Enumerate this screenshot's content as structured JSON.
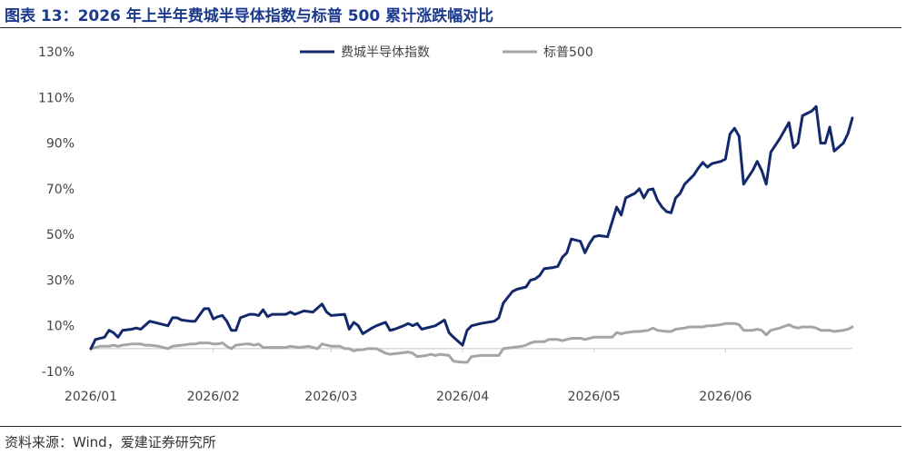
{
  "chart_data": {
    "type": "line",
    "title": "图表 13：2026 年上半年费城半导体指数与标普 500 累计涨跌幅对比",
    "source": "资料来源：Wind，爱建证券研究所",
    "y_ticks": [
      "130%",
      "110%",
      "90%",
      "70%",
      "50%",
      "30%",
      "10%",
      "-10%"
    ],
    "ylim": [
      -10,
      130
    ],
    "y_unit": "%",
    "x_ticks": [
      {
        "label": "2026/01",
        "x": 0
      },
      {
        "label": "2026/02",
        "x": 27
      },
      {
        "label": "2026/03",
        "x": 53
      },
      {
        "label": "2026/04",
        "x": 82
      },
      {
        "label": "2026/05",
        "x": 111
      },
      {
        "label": "2026/06",
        "x": 140
      }
    ],
    "xlim": [
      0,
      168
    ],
    "legend_position": "top-center",
    "grid": false,
    "series": [
      {
        "name": "费城半导体指数",
        "color": "#13296b",
        "points": [
          [
            0,
            0
          ],
          [
            1,
            4
          ],
          [
            3,
            5
          ],
          [
            4,
            8
          ],
          [
            5,
            7
          ],
          [
            6,
            5
          ],
          [
            7,
            8
          ],
          [
            9,
            8.5
          ],
          [
            10,
            9
          ],
          [
            11,
            8.5
          ],
          [
            13,
            12
          ],
          [
            15,
            11
          ],
          [
            17,
            10
          ],
          [
            18,
            13.5
          ],
          [
            19,
            13.5
          ],
          [
            20,
            12.5
          ],
          [
            22,
            12
          ],
          [
            23,
            12
          ],
          [
            25,
            17.5
          ],
          [
            26,
            17.5
          ],
          [
            27,
            13
          ],
          [
            28,
            14
          ],
          [
            29,
            14.5
          ],
          [
            30,
            12
          ],
          [
            31,
            8
          ],
          [
            32,
            8
          ],
          [
            33,
            13.5
          ],
          [
            35,
            15
          ],
          [
            36,
            15
          ],
          [
            37,
            14.5
          ],
          [
            38,
            17
          ],
          [
            39,
            14
          ],
          [
            40,
            15
          ],
          [
            43,
            15
          ],
          [
            44,
            16
          ],
          [
            45,
            15
          ],
          [
            47,
            16.5
          ],
          [
            49,
            16
          ],
          [
            51,
            19.5
          ],
          [
            52,
            16
          ],
          [
            53,
            14.5
          ],
          [
            56,
            15
          ],
          [
            57,
            8.5
          ],
          [
            58,
            11.5
          ],
          [
            59,
            10
          ],
          [
            60,
            6.5
          ],
          [
            62,
            9
          ],
          [
            63,
            10
          ],
          [
            65,
            11.5
          ],
          [
            66,
            8
          ],
          [
            67,
            8.5
          ],
          [
            69,
            10
          ],
          [
            70,
            11
          ],
          [
            71,
            10
          ],
          [
            72,
            11
          ],
          [
            73,
            8.5
          ],
          [
            76,
            10
          ],
          [
            78,
            12.5
          ],
          [
            79,
            7
          ],
          [
            80,
            5
          ],
          [
            82,
            1.5
          ],
          [
            83,
            8
          ],
          [
            84,
            10
          ],
          [
            86,
            11
          ],
          [
            89,
            12
          ],
          [
            90,
            13.5
          ],
          [
            91,
            20
          ],
          [
            93,
            25
          ],
          [
            94,
            26
          ],
          [
            96,
            27
          ],
          [
            97,
            30
          ],
          [
            98,
            30.5
          ],
          [
            99,
            32
          ],
          [
            100,
            35
          ],
          [
            102,
            35.5
          ],
          [
            103,
            36
          ],
          [
            104,
            40
          ],
          [
            105,
            42
          ],
          [
            106,
            48
          ],
          [
            107,
            47.5
          ],
          [
            108,
            47
          ],
          [
            109,
            42
          ],
          [
            110,
            46
          ],
          [
            111,
            49
          ],
          [
            112,
            49.5
          ],
          [
            114,
            49
          ],
          [
            116,
            62
          ],
          [
            117,
            58.5
          ],
          [
            118,
            66
          ],
          [
            120,
            68
          ],
          [
            121,
            70
          ],
          [
            122,
            66
          ],
          [
            123,
            69.5
          ],
          [
            124,
            70
          ],
          [
            125,
            65
          ],
          [
            126,
            62
          ],
          [
            127,
            60
          ],
          [
            128,
            59.5
          ],
          [
            129,
            66
          ],
          [
            130,
            68
          ],
          [
            131,
            72
          ],
          [
            132,
            74
          ],
          [
            133,
            76
          ],
          [
            134,
            79
          ],
          [
            135,
            81.5
          ],
          [
            136,
            79.5
          ],
          [
            137,
            81
          ],
          [
            139,
            82
          ],
          [
            140,
            83
          ],
          [
            141,
            94
          ],
          [
            142,
            96.5
          ],
          [
            143,
            93
          ],
          [
            144,
            72
          ],
          [
            146,
            78
          ],
          [
            147,
            82
          ],
          [
            148,
            78
          ],
          [
            149,
            72
          ],
          [
            150,
            86
          ],
          [
            152,
            92
          ],
          [
            154,
            99
          ],
          [
            155,
            88
          ],
          [
            156,
            90
          ],
          [
            157,
            102
          ],
          [
            158,
            103
          ],
          [
            159,
            104
          ],
          [
            160,
            106
          ],
          [
            161,
            90
          ],
          [
            162,
            90
          ],
          [
            163,
            97
          ],
          [
            164,
            86.5
          ],
          [
            166,
            90
          ],
          [
            167,
            94
          ],
          [
            168,
            101
          ]
        ]
      },
      {
        "name": "标普500",
        "color": "#a5a5a5",
        "points": [
          [
            0,
            0
          ],
          [
            2,
            1
          ],
          [
            4,
            1
          ],
          [
            5,
            1.5
          ],
          [
            6,
            1
          ],
          [
            7,
            1.5
          ],
          [
            9,
            2
          ],
          [
            11,
            2
          ],
          [
            12,
            1.5
          ],
          [
            13,
            1.5
          ],
          [
            15,
            1
          ],
          [
            17,
            0
          ],
          [
            18,
            1
          ],
          [
            20,
            1.5
          ],
          [
            22,
            2
          ],
          [
            23,
            2
          ],
          [
            24,
            2.5
          ],
          [
            26,
            2.5
          ],
          [
            27,
            2
          ],
          [
            28,
            2
          ],
          [
            29,
            2.5
          ],
          [
            30,
            1
          ],
          [
            31,
            0
          ],
          [
            32,
            1.5
          ],
          [
            34,
            2
          ],
          [
            35,
            2
          ],
          [
            36,
            1.5
          ],
          [
            37,
            2
          ],
          [
            38,
            0.5
          ],
          [
            40,
            0.5
          ],
          [
            42,
            0.5
          ],
          [
            43,
            0.5
          ],
          [
            44,
            1
          ],
          [
            46,
            0.5
          ],
          [
            48,
            1
          ],
          [
            50,
            0
          ],
          [
            51,
            2
          ],
          [
            52,
            1.5
          ],
          [
            53,
            1
          ],
          [
            55,
            1
          ],
          [
            56,
            0
          ],
          [
            57,
            0
          ],
          [
            58,
            -1
          ],
          [
            59,
            -0.5
          ],
          [
            60,
            -0.5
          ],
          [
            61,
            0
          ],
          [
            63,
            0
          ],
          [
            65,
            -2
          ],
          [
            66,
            -2.5
          ],
          [
            68,
            -2
          ],
          [
            70,
            -1.5
          ],
          [
            71,
            -2
          ],
          [
            72,
            -3.5
          ],
          [
            74,
            -3
          ],
          [
            75,
            -2.5
          ],
          [
            76,
            -3
          ],
          [
            77,
            -2.5
          ],
          [
            79,
            -3
          ],
          [
            80,
            -5.5
          ],
          [
            82,
            -6
          ],
          [
            83,
            -6
          ],
          [
            84,
            -3.5
          ],
          [
            86,
            -3
          ],
          [
            88,
            -3
          ],
          [
            90,
            -3
          ],
          [
            91,
            0
          ],
          [
            93,
            0.5
          ],
          [
            95,
            1
          ],
          [
            96,
            1.5
          ],
          [
            97,
            2.5
          ],
          [
            98,
            3
          ],
          [
            99,
            3
          ],
          [
            100,
            3
          ],
          [
            101,
            4
          ],
          [
            103,
            4
          ],
          [
            104,
            3.5
          ],
          [
            105,
            4
          ],
          [
            106,
            4.5
          ],
          [
            108,
            4.5
          ],
          [
            109,
            4
          ],
          [
            110,
            4.5
          ],
          [
            111,
            5
          ],
          [
            112,
            5
          ],
          [
            114,
            5
          ],
          [
            115,
            5
          ],
          [
            116,
            7
          ],
          [
            117,
            6.5
          ],
          [
            118,
            7
          ],
          [
            120,
            7.5
          ],
          [
            121,
            7.5
          ],
          [
            123,
            8
          ],
          [
            124,
            9
          ],
          [
            125,
            8
          ],
          [
            127,
            7.5
          ],
          [
            128,
            7.5
          ],
          [
            129,
            8.5
          ],
          [
            131,
            9
          ],
          [
            132,
            9.5
          ],
          [
            133,
            9.5
          ],
          [
            135,
            9.5
          ],
          [
            136,
            10
          ],
          [
            137,
            10
          ],
          [
            139,
            10.5
          ],
          [
            140,
            11
          ],
          [
            141,
            11
          ],
          [
            142,
            11
          ],
          [
            143,
            10.5
          ],
          [
            144,
            8
          ],
          [
            146,
            8
          ],
          [
            147,
            8.5
          ],
          [
            148,
            8
          ],
          [
            149,
            6
          ],
          [
            150,
            8
          ],
          [
            152,
            9
          ],
          [
            154,
            10.5
          ],
          [
            155,
            9.5
          ],
          [
            156,
            9
          ],
          [
            157,
            9.5
          ],
          [
            159,
            9.5
          ],
          [
            160,
            9
          ],
          [
            161,
            8
          ],
          [
            163,
            8
          ],
          [
            164,
            7.5
          ],
          [
            166,
            8
          ],
          [
            167,
            8.5
          ],
          [
            168,
            9.5
          ]
        ]
      }
    ]
  }
}
